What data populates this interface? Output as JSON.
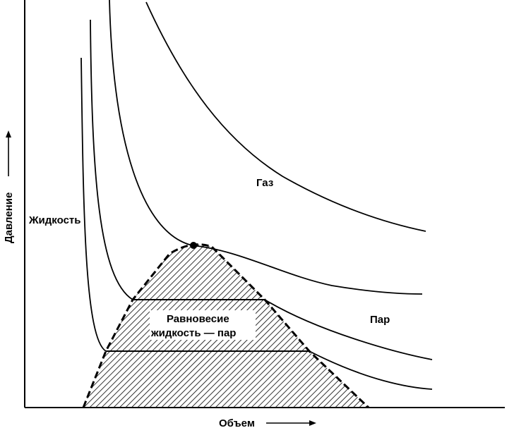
{
  "axes": {
    "x_label": "Объем",
    "y_label": "Давление"
  },
  "regions": {
    "gas": "Газ",
    "liquid": "Жидкость",
    "vapor": "Пар",
    "equilibrium_line1": "Равновесие",
    "equilibrium_line2": "жидкость — пар"
  },
  "colors": {
    "ink": "#000000",
    "background": "#ffffff"
  }
}
